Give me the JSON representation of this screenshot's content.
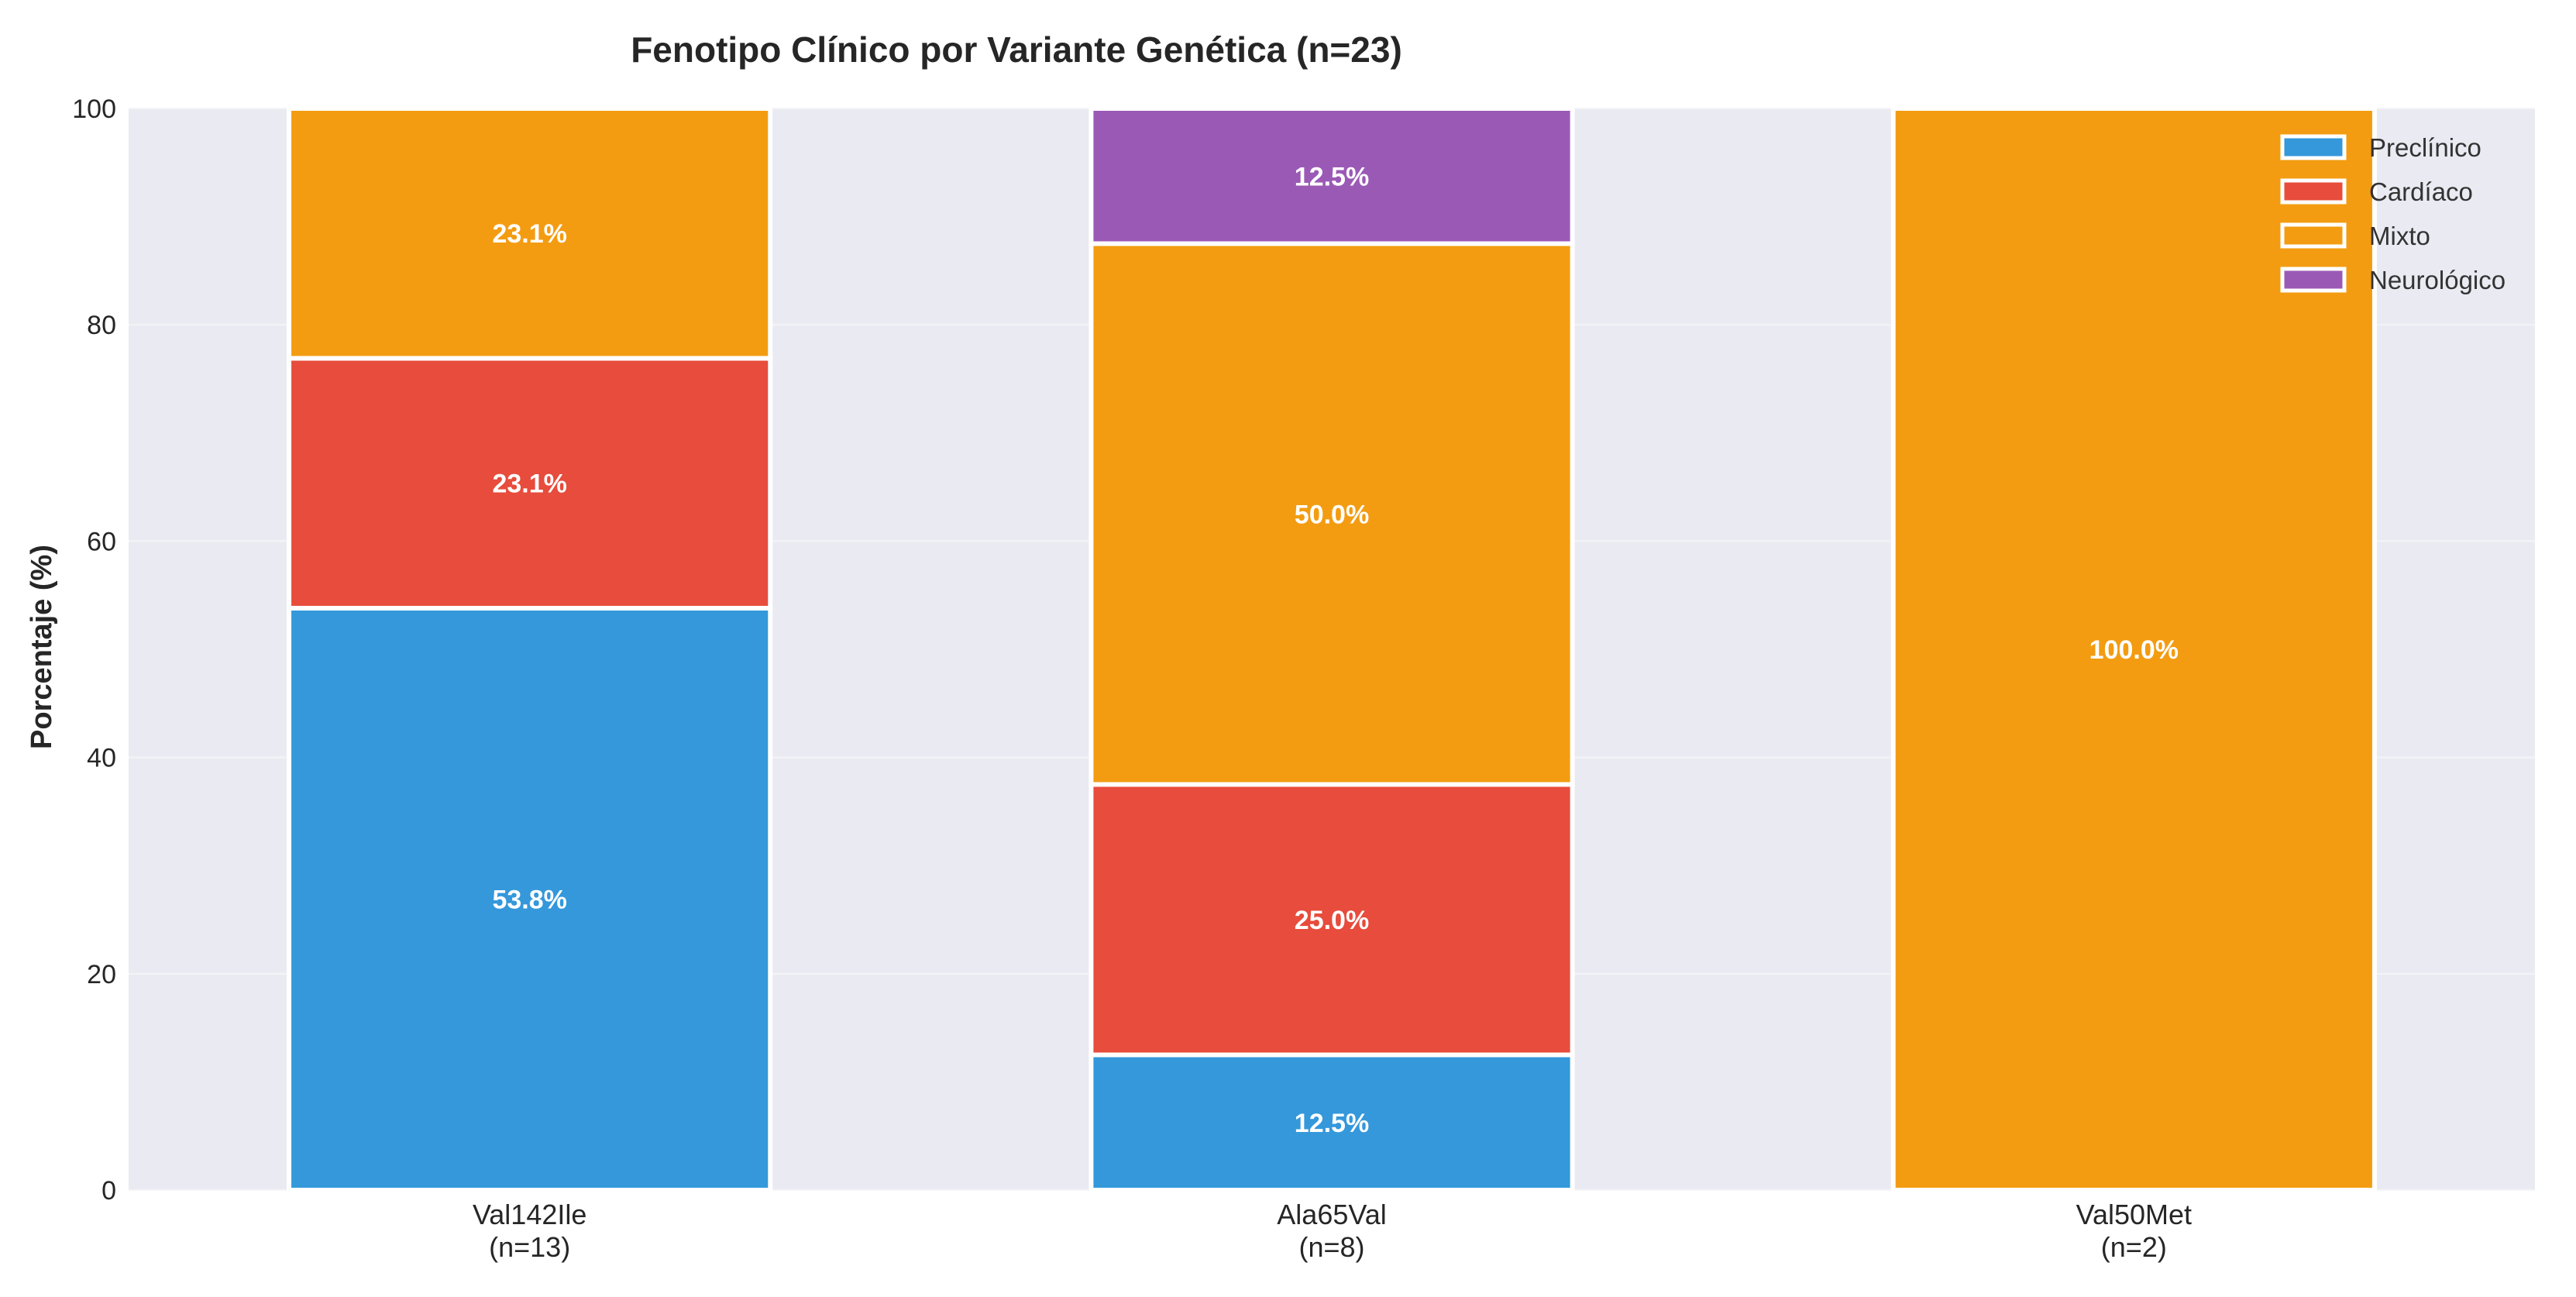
{
  "chart_data": {
    "type": "bar",
    "stacked": true,
    "title": "Fenotipo Clínico por Variante Genética (n=23)",
    "xlabel": "",
    "ylabel": "Porcentaje (%)",
    "ylim": [
      0,
      100
    ],
    "yticks": [
      0,
      20,
      40,
      60,
      80,
      100
    ],
    "grid": true,
    "legend_position": "top-right",
    "categories": [
      {
        "name": "Val142Ile",
        "n": "(n=13)"
      },
      {
        "name": "Ala65Val",
        "n": "(n=8)"
      },
      {
        "name": "Val50Met",
        "n": "(n=2)"
      }
    ],
    "series": [
      {
        "name": "Preclínico",
        "color": "#3498db",
        "values": [
          53.8,
          12.5,
          0
        ]
      },
      {
        "name": "Cardíaco",
        "color": "#e74c3c",
        "values": [
          23.1,
          25.0,
          0
        ]
      },
      {
        "name": "Mixto",
        "color": "#f39c12",
        "values": [
          23.1,
          50.0,
          100.0
        ]
      },
      {
        "name": "Neurológico",
        "color": "#9b59b6",
        "values": [
          0,
          12.5,
          0
        ]
      }
    ],
    "data_labels": [
      [
        "53.8%",
        "23.1%",
        "23.1%",
        ""
      ],
      [
        "12.5%",
        "25.0%",
        "50.0%",
        "12.5%"
      ],
      [
        "",
        "",
        "100.0%",
        ""
      ]
    ],
    "background_color": "#eaeaf2"
  }
}
